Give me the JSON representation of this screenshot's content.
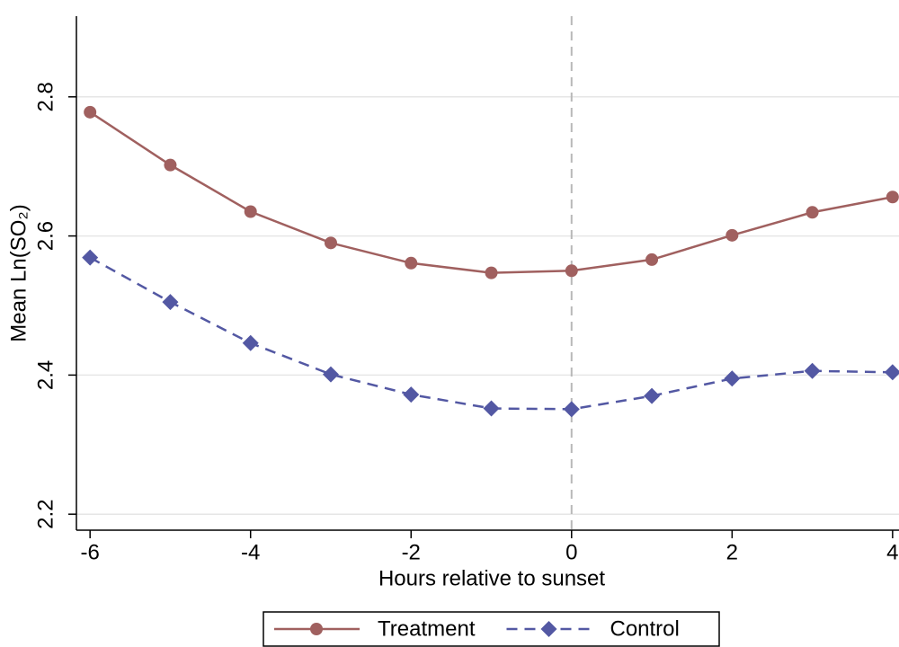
{
  "chart_data": {
    "type": "line",
    "x_label": "Hours relative to sunset",
    "y_label": "Mean Ln(SO₂)",
    "x": [
      -6,
      -5,
      -4,
      -3,
      -2,
      -1,
      0,
      1,
      2,
      3,
      4
    ],
    "series": [
      {
        "name": "Treatment",
        "color": "#a0605f",
        "marker": "circle",
        "dash": false,
        "values": [
          2.778,
          2.702,
          2.635,
          2.59,
          2.561,
          2.547,
          2.55,
          2.566,
          2.601,
          2.634,
          2.656
        ]
      },
      {
        "name": "Control",
        "color": "#5358a3",
        "marker": "diamond",
        "dash": true,
        "values": [
          2.569,
          2.505,
          2.446,
          2.401,
          2.372,
          2.352,
          2.351,
          2.37,
          2.395,
          2.406,
          2.404
        ]
      }
    ],
    "xlim": [
      -6.17,
      4.08
    ],
    "ylim": [
      2.177,
      2.916
    ],
    "xticks": [
      -6,
      -4,
      -2,
      0,
      2,
      4
    ],
    "yticks": [
      2.2,
      2.4,
      2.6,
      2.8
    ],
    "vline": 0,
    "grid": true,
    "legend": "bottom"
  }
}
